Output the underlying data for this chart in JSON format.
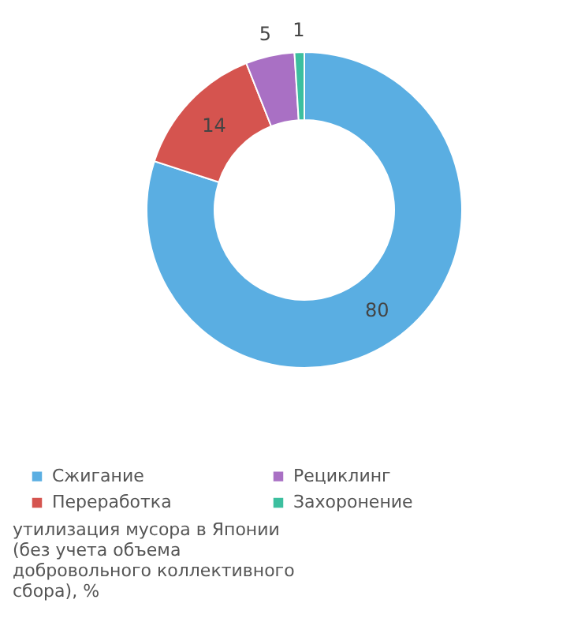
{
  "chart_data": {
    "type": "donut",
    "title": "утилизация мусора в Японии (без учета объема добровольного коллективного сбора), %",
    "categories": [
      "Сжигание",
      "Переработка",
      "Рециклинг",
      "Захоронение"
    ],
    "values": [
      80,
      14,
      5,
      1
    ],
    "colors": [
      "#5aaee2",
      "#d5544f",
      "#a970c4",
      "#3cbf9f"
    ],
    "data_labels": true,
    "legend": "bottom"
  }
}
